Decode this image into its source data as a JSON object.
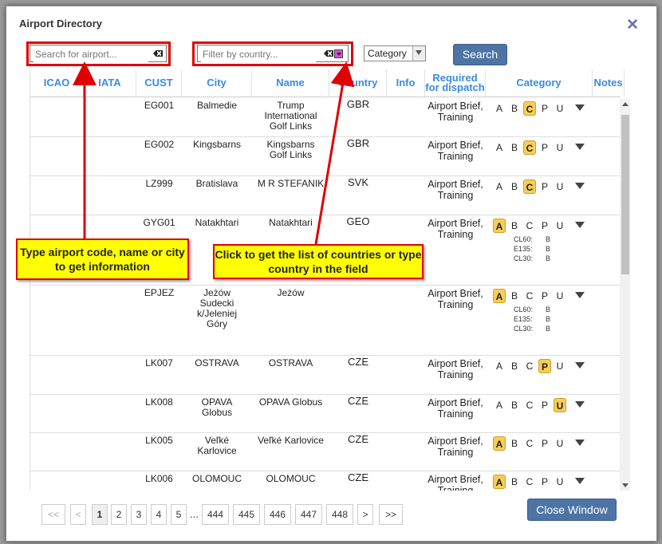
{
  "dialog": {
    "title": "Airport Directory",
    "close_glyph": "✕"
  },
  "search": {
    "placeholder": "Search for airport...",
    "value": ""
  },
  "country_filter": {
    "placeholder": "Filter by country...",
    "value": ""
  },
  "category_select": {
    "selected": "Category"
  },
  "search_button": "Search",
  "close_button": "Close Window",
  "columns": [
    {
      "label": "ICAO"
    },
    {
      "label": "IATA"
    },
    {
      "label": "CUST"
    },
    {
      "label": "City"
    },
    {
      "label": "Name"
    },
    {
      "label": "Country"
    },
    {
      "label": "Info"
    },
    {
      "label": "Required for dispatch"
    },
    {
      "label": "Category"
    },
    {
      "label": "Notes"
    }
  ],
  "category_letters": [
    "A",
    "B",
    "C",
    "P",
    "U"
  ],
  "rows": [
    {
      "cust": "EG001",
      "city": "Balmedie",
      "name": "Trump International Golf Links",
      "country": "GBR",
      "dispatch": "Airport Brief, Training",
      "highlight": "C",
      "subs": []
    },
    {
      "cust": "EG002",
      "city": "Kingsbarns",
      "name": "Kingsbarns Golf Links",
      "country": "GBR",
      "dispatch": "Airport Brief, Training",
      "highlight": "C",
      "subs": []
    },
    {
      "cust": "LZ999",
      "city": "Bratislava",
      "name": "M R STEFANIK",
      "country": "SVK",
      "dispatch": "Airport Brief, Training",
      "highlight": "C",
      "subs": []
    },
    {
      "cust": "GYG01",
      "city": "Natakhtari",
      "name": "Natakhtari",
      "country": "GEO",
      "dispatch": "Airport Brief, Training",
      "highlight": "A",
      "subs": [
        {
          "label": "CL60:",
          "val": "B"
        },
        {
          "label": "E135:",
          "val": "B"
        },
        {
          "label": "CL30:",
          "val": "B"
        }
      ]
    },
    {
      "cust": "EPJEZ",
      "city": "Jeżów Sudecki k/Jeleniej Góry",
      "name": "Jeżów",
      "country": "",
      "dispatch": "Airport Brief, Training",
      "highlight": "A",
      "subs": [
        {
          "label": "CL60:",
          "val": "B"
        },
        {
          "label": "E135:",
          "val": "B"
        },
        {
          "label": "CL30:",
          "val": "B"
        }
      ]
    },
    {
      "cust": "LK007",
      "city": "OSTRAVA",
      "name": "OSTRAVA",
      "country": "CZE",
      "dispatch": "Airport Brief, Training",
      "highlight": "P",
      "subs": []
    },
    {
      "cust": "LK008",
      "city": "OPAVA Globus",
      "name": "OPAVA Globus",
      "country": "CZE",
      "dispatch": "Airport Brief, Training",
      "highlight": "U",
      "subs": []
    },
    {
      "cust": "LK005",
      "city": "Veľké Karlovice",
      "name": "Veľké Karlovice",
      "country": "CZE",
      "dispatch": "Airport Brief, Training",
      "highlight": "A",
      "subs": []
    },
    {
      "cust": "LK006",
      "city": "OLOMOUC",
      "name": "OLOMOUC",
      "country": "CZE",
      "dispatch": "Airport Brief, Training",
      "highlight": "A",
      "subs": []
    }
  ],
  "pagination": {
    "first": "<<",
    "prev": "<",
    "pages": [
      "1",
      "2",
      "3",
      "4",
      "5"
    ],
    "ellipsis": "...",
    "tail_pages": [
      "444",
      "445",
      "446",
      "447",
      "448"
    ],
    "next": ">",
    "last": ">>",
    "current": "1"
  },
  "callouts": {
    "left": "Type airport code, name or city to get information",
    "right": "Click to get the list of countries or type country in the field"
  },
  "colors": {
    "header_text": "#3a8be0",
    "highlight": "#f7cd58",
    "callout_bg": "#ffff00",
    "callout_border": "#e00000",
    "button": "#4e74a6"
  }
}
